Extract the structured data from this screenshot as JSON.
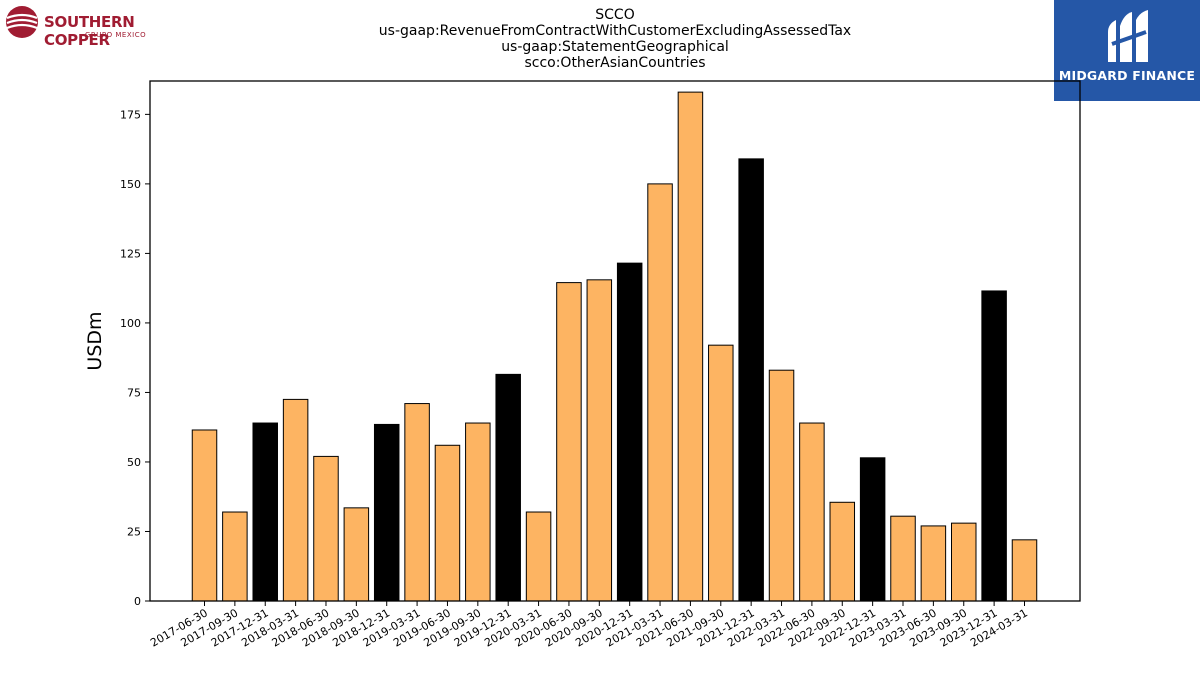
{
  "logos": {
    "left": {
      "name": "SOUTHERN COPPER",
      "subtitle": "GRUPO MEXICO",
      "color": "#a01c32"
    },
    "right": {
      "name": "MIDGARD FINANCE",
      "color": "#2557a7"
    }
  },
  "chart_data": {
    "type": "bar",
    "title_lines": [
      "SCCO",
      "us-gaap:RevenueFromContractWithCustomerExcludingAssessedTax",
      "us-gaap:StatementGeographical",
      "scco:OtherAsianCountries"
    ],
    "ylabel": "USDm",
    "xlabel": "",
    "ylim": [
      0,
      187
    ],
    "yticks": [
      0,
      25,
      50,
      75,
      100,
      125,
      150,
      175
    ],
    "grid": false,
    "categories": [
      "2017-06-30",
      "2017-09-30",
      "2017-12-31",
      "2018-03-31",
      "2018-06-30",
      "2018-09-30",
      "2018-12-31",
      "2019-03-31",
      "2019-06-30",
      "2019-09-30",
      "2019-12-31",
      "2020-03-31",
      "2020-06-30",
      "2020-09-30",
      "2020-12-31",
      "2021-03-31",
      "2021-06-30",
      "2021-09-30",
      "2021-12-31",
      "2022-03-31",
      "2022-06-30",
      "2022-09-30",
      "2022-12-31",
      "2023-03-31",
      "2023-06-30",
      "2023-09-30",
      "2023-12-31",
      "2024-03-31"
    ],
    "values": [
      61.5,
      32,
      64,
      72.5,
      52,
      33.5,
      63.5,
      71,
      56,
      64,
      81.5,
      32,
      114.5,
      115.5,
      121.5,
      150,
      183,
      92,
      159,
      83,
      64,
      35.5,
      51.5,
      30.5,
      27,
      28,
      111.5,
      22
    ],
    "colors": {
      "quarter": "#fdb462",
      "year_end": "#000000"
    }
  }
}
